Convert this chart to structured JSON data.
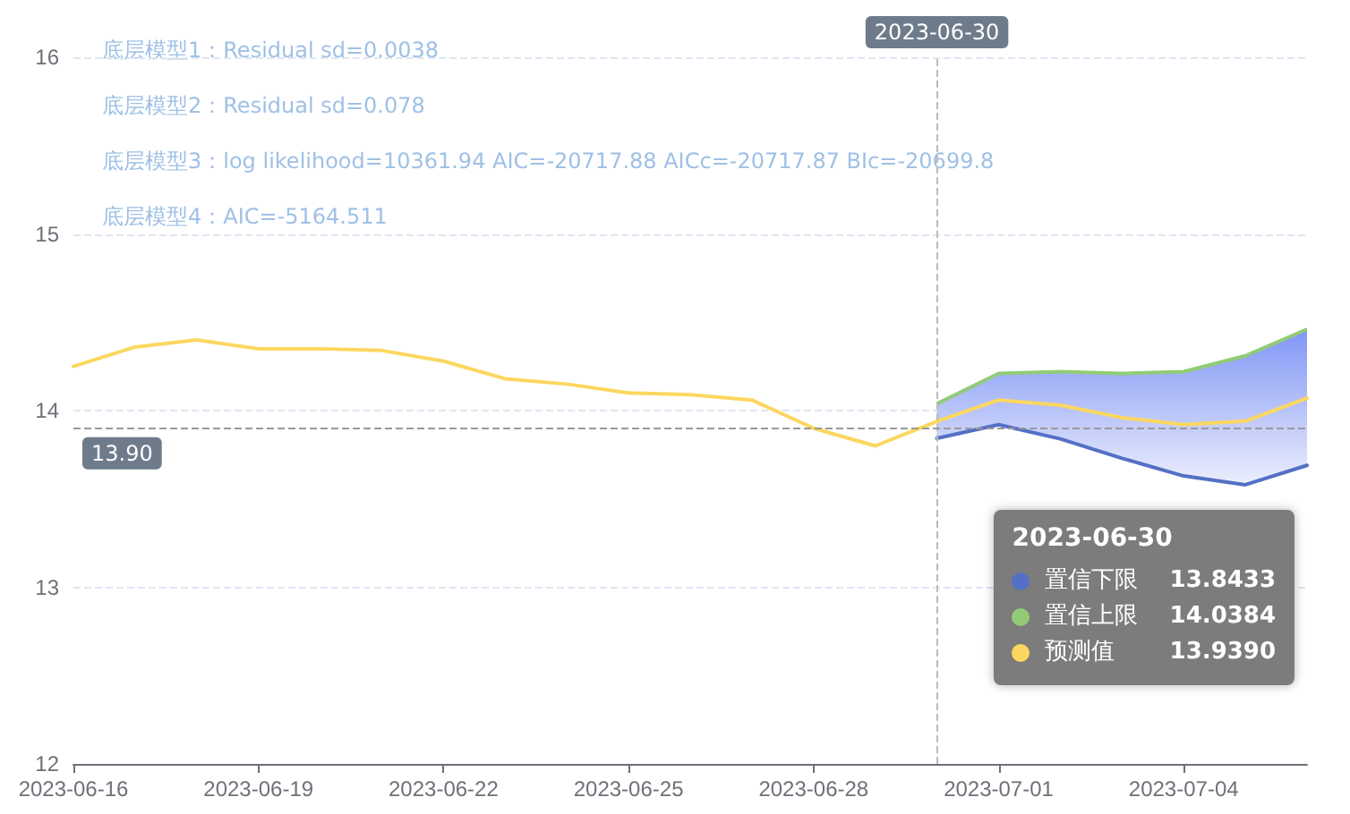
{
  "chart_data": {
    "type": "line",
    "x": [
      "2023-06-16",
      "2023-06-17",
      "2023-06-18",
      "2023-06-19",
      "2023-06-20",
      "2023-06-21",
      "2023-06-22",
      "2023-06-23",
      "2023-06-24",
      "2023-06-25",
      "2023-06-26",
      "2023-06-27",
      "2023-06-28",
      "2023-06-29",
      "2023-06-30",
      "2023-07-01",
      "2023-07-02",
      "2023-07-03",
      "2023-07-04",
      "2023-07-05",
      "2023-07-06"
    ],
    "series": [
      {
        "name": "置信下限",
        "color": "#5470c6",
        "x": [
          "2023-06-30",
          "2023-07-01",
          "2023-07-02",
          "2023-07-03",
          "2023-07-04",
          "2023-07-05",
          "2023-07-06"
        ],
        "values": [
          13.8433,
          13.92,
          13.84,
          13.73,
          13.63,
          13.58,
          13.69
        ]
      },
      {
        "name": "置信上限",
        "type": "area",
        "color": "#91cc75",
        "x": [
          "2023-06-30",
          "2023-07-01",
          "2023-07-02",
          "2023-07-03",
          "2023-07-04",
          "2023-07-05",
          "2023-07-06"
        ],
        "values": [
          14.0384,
          14.21,
          14.22,
          14.21,
          14.22,
          14.31,
          14.46
        ]
      },
      {
        "name": "预测值",
        "color": "#fcd75f",
        "values": [
          14.25,
          14.36,
          14.4,
          14.35,
          14.35,
          14.34,
          14.28,
          14.18,
          14.15,
          14.1,
          14.09,
          14.06,
          13.9,
          13.8,
          13.939,
          14.06,
          14.03,
          13.96,
          13.92,
          13.94,
          14.07
        ]
      }
    ],
    "xlim": [
      "2023-06-16",
      "2023-07-06"
    ],
    "xticks": [
      "2023-06-16",
      "2023-06-19",
      "2023-06-22",
      "2023-06-25",
      "2023-06-28",
      "2023-07-01",
      "2023-07-04"
    ],
    "ylim": [
      12,
      16
    ],
    "yticks": [
      12,
      13,
      14,
      15,
      16
    ],
    "grid": "y",
    "marker": "none",
    "line_style": "solid",
    "legend": "bottom right",
    "ref_lines": [
      {
        "axis": "x",
        "value": "2023-06-30",
        "label": "2023-06-30",
        "color": "#bbbbbb",
        "line_style": "dashed"
      },
      {
        "axis": "y",
        "value": 13.9,
        "label": "13.90",
        "color": "#999999",
        "line_style": "dashed"
      }
    ],
    "annotations": [
      "底层模型1：Residual sd=0.0038",
      "底层模型2：Residual sd=0.078",
      "底层模型3：log likelihood=10361.94 AIC=-20717.88 AICc=-20717.87 BIc=-20699.8",
      "底层模型4：AIC=-5164.511",
      "13.8433",
      "14.0384",
      "13.9390"
    ]
  }
}
